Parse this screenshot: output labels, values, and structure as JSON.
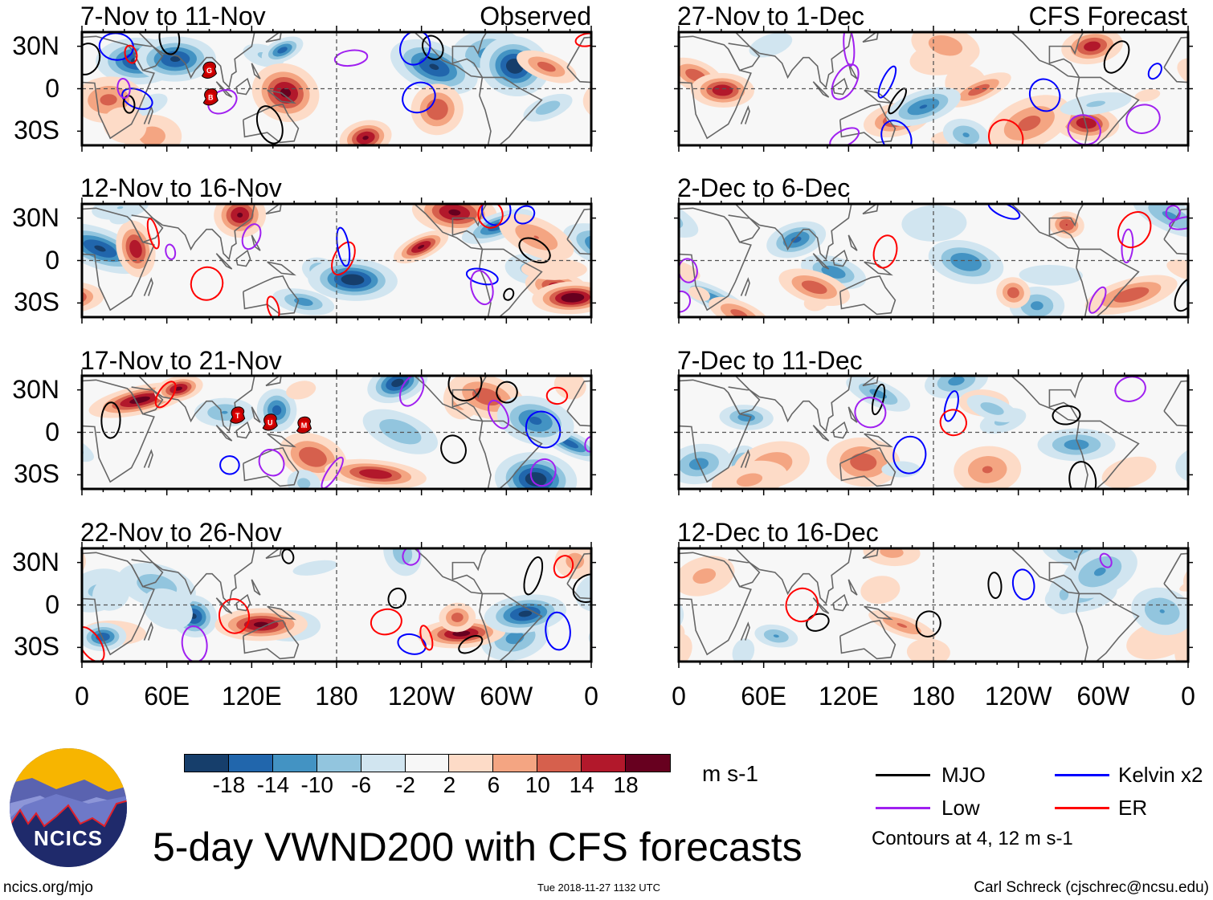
{
  "title": "5-day VWND200 with CFS forecasts",
  "logo_text": "NCICS",
  "footer": {
    "left": "ncics.org/mjo",
    "center": "Tue 2018-11-27 1132 UTC",
    "right": "Carl Schreck (cjschrec@ncsu.edu)"
  },
  "y_labels": [
    "30N",
    "0",
    "30S"
  ],
  "x_labels": [
    "0",
    "60E",
    "120E",
    "180",
    "120W",
    "60W",
    "0"
  ],
  "columns": [
    {
      "label": "Observed",
      "panels": [
        {
          "period": "7-Nov to 11-Nov",
          "storms": [
            {
              "name": "G",
              "lon": 90,
              "lat": 13
            },
            {
              "name": "B",
              "lon": 91,
              "lat": -6
            }
          ]
        },
        {
          "period": "12-Nov to 16-Nov",
          "storms": []
        },
        {
          "period": "17-Nov to 21-Nov",
          "storms": [
            {
              "name": "T",
              "lon": 110,
              "lat": 12
            },
            {
              "name": "U",
              "lon": 133,
              "lat": 7
            },
            {
              "name": "M",
              "lon": 157,
              "lat": 5
            }
          ]
        },
        {
          "period": "22-Nov to 26-Nov",
          "storms": []
        }
      ]
    },
    {
      "label": "CFS Forecast",
      "panels": [
        {
          "period": "27-Nov to 1-Dec",
          "storms": []
        },
        {
          "period": "2-Dec to 6-Dec",
          "storms": []
        },
        {
          "period": "7-Dec to 11-Dec",
          "storms": []
        },
        {
          "period": "12-Dec to 16-Dec",
          "storms": []
        }
      ]
    }
  ],
  "colorbar": {
    "units": "m s-1",
    "labels": [
      "-18",
      "-14",
      "-10",
      "-6",
      "-2",
      "2",
      "6",
      "10",
      "14",
      "18"
    ],
    "colors": [
      "#163e6b",
      "#2166ac",
      "#4393c3",
      "#92c5de",
      "#d1e5f0",
      "#f7f7f7",
      "#fddbc7",
      "#f4a582",
      "#d6604d",
      "#b2182b",
      "#67001f"
    ]
  },
  "legend": {
    "items": [
      {
        "label": "MJO",
        "color": "#000000"
      },
      {
        "label": "Kelvin x2",
        "color": "#0000ff"
      },
      {
        "label": "Low",
        "color": "#a020f0"
      },
      {
        "label": "ER",
        "color": "#ff0000"
      }
    ],
    "note": "Contours at 4, 12 m s-1"
  }
}
